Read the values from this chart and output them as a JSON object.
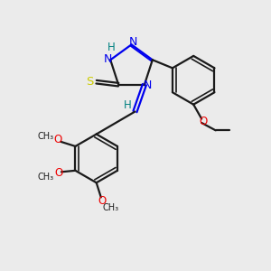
{
  "bg_color": "#ebebeb",
  "bond_color": "#1a1a1a",
  "N_color": "#0000ee",
  "O_color": "#ee0000",
  "S_color": "#cccc00",
  "H_color": "#008080",
  "figsize": [
    3.0,
    3.0
  ],
  "dpi": 100,
  "xlim": [
    0,
    10
  ],
  "ylim": [
    0,
    10
  ]
}
